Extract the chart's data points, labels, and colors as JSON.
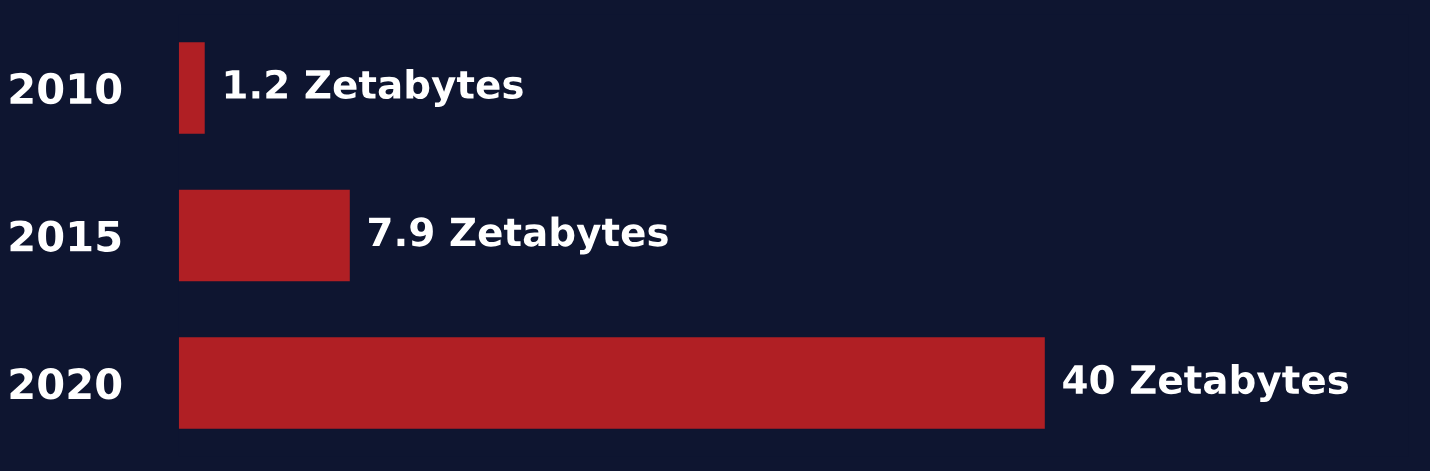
{
  "chart_data": {
    "type": "bar",
    "orientation": "horizontal",
    "categories": [
      "2010",
      "2015",
      "2020"
    ],
    "values": [
      1.2,
      7.9,
      40
    ],
    "color": "#b01f24",
    "value_labels": [
      "1.2 Zetabytes",
      "7.9 Zetabytes",
      "40 Zetabytes"
    ],
    "tick_labels": "y",
    "grid": false,
    "legend": false
  }
}
